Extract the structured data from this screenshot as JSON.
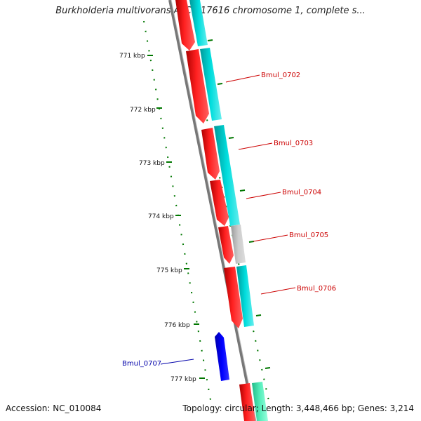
{
  "title": "Burkholderia multivorans ATCC 17616 chromosome 1, complete s...",
  "footer": {
    "accession": "Accession: NC_010084",
    "summary": "Topology: circular; Length: 3,448,466 bp; Genes: 3,214"
  },
  "ticks": [
    {
      "label": "771 kbp"
    },
    {
      "label": "772 kbp"
    },
    {
      "label": "773 kbp"
    },
    {
      "label": "774 kbp"
    },
    {
      "label": "775 kbp"
    },
    {
      "label": "776 kbp"
    },
    {
      "label": "777 kbp"
    }
  ],
  "genes": [
    {
      "name": "Bmul_0702",
      "strand": "reverse",
      "color": "#cc0000"
    },
    {
      "name": "Bmul_0703",
      "strand": "reverse",
      "color": "#cc0000"
    },
    {
      "name": "Bmul_0704",
      "strand": "reverse",
      "color": "#cc0000"
    },
    {
      "name": "Bmul_0705",
      "strand": "reverse",
      "color": "#cc0000"
    },
    {
      "name": "Bmul_0706",
      "strand": "reverse",
      "color": "#cc0000"
    },
    {
      "name": "Bmul_0707",
      "strand": "forward",
      "color": "#0000aa"
    }
  ],
  "colors": {
    "cds": "#ff0000",
    "feature_cyan": "#00cccc",
    "feature_gray": "#bbbbbb",
    "feature_green": "#33ddaa",
    "forward_gene": "#0000ee",
    "backbone": "#888888",
    "tick": "#007700"
  }
}
